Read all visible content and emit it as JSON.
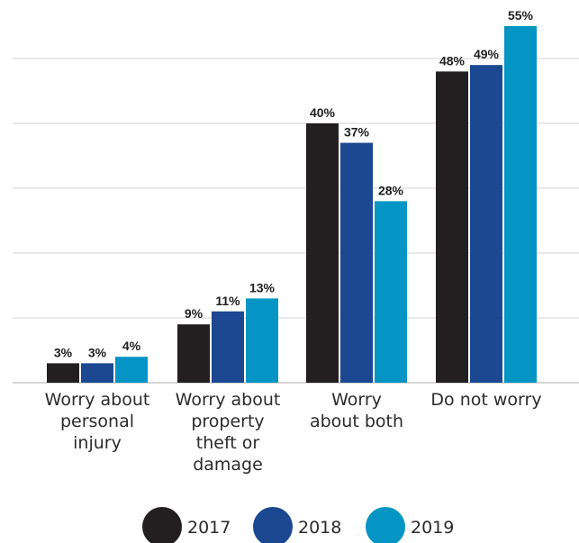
{
  "chart_data": {
    "type": "bar",
    "categories": [
      [
        "Worry about",
        "personal",
        "injury"
      ],
      [
        "Worry about",
        "property",
        "theft or",
        "damage"
      ],
      [
        "Worry",
        "about both"
      ],
      [
        "Do not worry"
      ]
    ],
    "series": [
      {
        "name": "2017",
        "values": [
          3,
          9,
          40,
          48
        ],
        "labels": [
          "3%",
          "9%",
          "40%",
          "48%"
        ],
        "color": "#231f20"
      },
      {
        "name": "2018",
        "values": [
          3,
          11,
          37,
          49
        ],
        "labels": [
          "3%",
          "11%",
          "37%",
          "49%"
        ],
        "color": "#1b4891"
      },
      {
        "name": "2019",
        "values": [
          4,
          13,
          28,
          55
        ],
        "labels": [
          "4%",
          "13%",
          "28%",
          "55%"
        ],
        "color": "#0595c4"
      }
    ],
    "ylim": [
      0,
      60
    ],
    "grid": true,
    "legend": "bottom"
  }
}
